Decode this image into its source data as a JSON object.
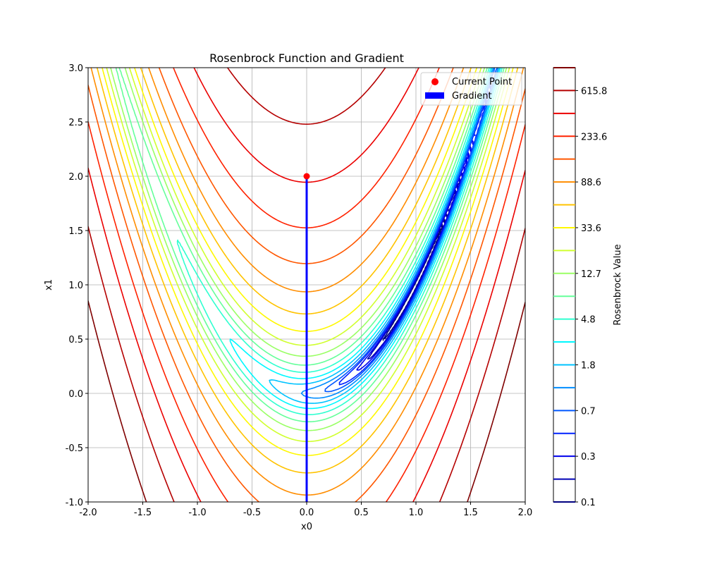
{
  "chart_data": {
    "type": "contour",
    "title": "Rosenbrock Function and Gradient",
    "xlabel": "x0",
    "ylabel": "x1",
    "xlim": [
      -2.0,
      2.0
    ],
    "ylim": [
      -1.0,
      3.0
    ],
    "xticks": [
      "-2.0",
      "-1.5",
      "-1.0",
      "-0.5",
      "0.0",
      "0.5",
      "1.0",
      "1.5",
      "2.0"
    ],
    "yticks": [
      "-1.0",
      "-0.5",
      "0.0",
      "0.5",
      "1.0",
      "1.5",
      "2.0",
      "2.5",
      "3.0"
    ],
    "grid": true,
    "function": "(1 - x0)^2 + 100 * (x1 - x0^2)^2",
    "contour_levels": [
      0.1,
      0.2,
      0.3,
      0.5,
      0.7,
      1.1,
      1.8,
      2.9,
      4.8,
      7.8,
      12.7,
      20.6,
      33.6,
      54.6,
      88.6,
      143.9,
      233.6,
      379.3,
      615.8,
      1000
    ],
    "colorbar": {
      "label": "Rosenbrock Value",
      "ticks": [
        "0.1",
        "0.3",
        "0.7",
        "1.8",
        "4.8",
        "12.7",
        "33.6",
        "88.6",
        "233.6",
        "615.8"
      ],
      "colormap": "jet"
    },
    "current_point": {
      "x": 0.0,
      "y": 2.0,
      "color": "#ff0000"
    },
    "gradient": {
      "x0": 0.0,
      "y0": 2.0,
      "dx": 0.0,
      "dy": -3.0,
      "color": "#0000ff"
    },
    "legend": {
      "position": "top-right",
      "entries": [
        {
          "label": "Current Point",
          "color": "#ff0000",
          "kind": "point"
        },
        {
          "label": "Gradient",
          "color": "#0000ff",
          "kind": "arrow"
        }
      ]
    }
  }
}
